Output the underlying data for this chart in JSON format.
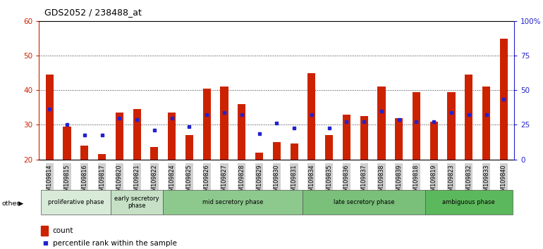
{
  "title": "GDS2052 / 238488_at",
  "samples": [
    "GSM109814",
    "GSM109815",
    "GSM109816",
    "GSM109817",
    "GSM109820",
    "GSM109821",
    "GSM109822",
    "GSM109824",
    "GSM109825",
    "GSM109826",
    "GSM109827",
    "GSM109828",
    "GSM109829",
    "GSM109830",
    "GSM109831",
    "GSM109834",
    "GSM109835",
    "GSM109836",
    "GSM109837",
    "GSM109838",
    "GSM109839",
    "GSM109818",
    "GSM109819",
    "GSM109823",
    "GSM109832",
    "GSM109833",
    "GSM109840"
  ],
  "count_values": [
    44.5,
    29.5,
    24.0,
    21.5,
    33.5,
    34.5,
    23.5,
    33.5,
    27.0,
    40.5,
    41.0,
    36.0,
    22.0,
    25.0,
    24.5,
    45.0,
    27.0,
    33.0,
    32.5,
    41.0,
    32.0,
    39.5,
    31.0,
    39.5,
    44.5,
    41.0,
    55.0
  ],
  "percentile_values": [
    34.5,
    30.0,
    27.0,
    27.0,
    32.0,
    31.5,
    28.5,
    32.0,
    29.5,
    33.0,
    33.5,
    33.0,
    27.5,
    30.5,
    29.0,
    33.0,
    29.0,
    31.0,
    31.0,
    34.0,
    31.5,
    31.0,
    31.0,
    33.5,
    33.0,
    33.0,
    37.5
  ],
  "phases": [
    {
      "label": "proliferative phase",
      "start": 0,
      "end": 4,
      "color": "#d8ead8"
    },
    {
      "label": "early secretory\nphase",
      "start": 4,
      "end": 7,
      "color": "#c5e0c5"
    },
    {
      "label": "mid secretory phase",
      "start": 7,
      "end": 15,
      "color": "#8dc88d"
    },
    {
      "label": "late secretory phase",
      "start": 15,
      "end": 22,
      "color": "#7abf7a"
    },
    {
      "label": "ambiguous phase",
      "start": 22,
      "end": 27,
      "color": "#5cb85c"
    }
  ],
  "ylim_min": 20,
  "ylim_max": 60,
  "yticks": [
    20,
    30,
    40,
    50,
    60
  ],
  "y2ticks_vals": [
    0,
    25,
    50,
    75,
    100
  ],
  "y2ticks_labels": [
    "0",
    "25",
    "50",
    "75",
    "100%"
  ],
  "bar_color": "#cc2200",
  "dot_color": "#2222cc",
  "left_axis_color": "#cc2200",
  "right_axis_color": "#2222cc",
  "tick_bg_color": "#d0d0d0",
  "phase_border_color": "#555555",
  "dotted_line_color": "#333333"
}
